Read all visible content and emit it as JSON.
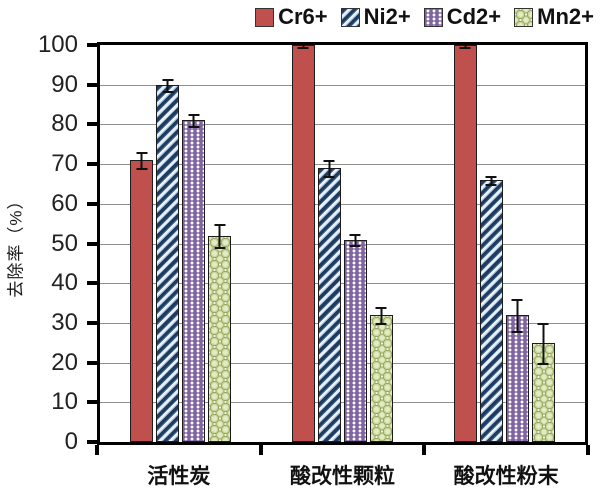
{
  "chart_data": {
    "type": "bar",
    "title": "",
    "xlabel": "",
    "ylabel": "去除率（%）",
    "ylim": [
      0,
      100
    ],
    "ytick_step": 10,
    "yticks": [
      0,
      10,
      20,
      30,
      40,
      50,
      60,
      70,
      80,
      90,
      100
    ],
    "grid": true,
    "legend_position": "top",
    "categories": [
      "活性炭",
      "酸改性颗粒",
      "酸改性粉末"
    ],
    "series": [
      {
        "name": "Cr6+",
        "values": [
          71,
          100,
          100
        ],
        "errors": [
          2,
          0.5,
          0.5
        ],
        "pattern": "solid",
        "color": "#C0504D",
        "pattern_color": "#C0504D"
      },
      {
        "name": "Ni2+",
        "values": [
          90,
          69,
          66
        ],
        "errors": [
          1.5,
          2,
          1
        ],
        "pattern": "stripes",
        "color": "#1F3A5F",
        "pattern_color": "#EAF1F8"
      },
      {
        "name": "Cd2+",
        "values": [
          81,
          51,
          32
        ],
        "errors": [
          1.5,
          1.5,
          4
        ],
        "pattern": "dots",
        "color": "#8064A2",
        "pattern_color": "#FFFFFF"
      },
      {
        "name": "Mn2+",
        "values": [
          52,
          32,
          25
        ],
        "errors": [
          3,
          2,
          5
        ],
        "pattern": "circles",
        "color": "#EFF3DF",
        "pattern_color": "#96A95E"
      }
    ],
    "colors": {
      "axis": "#000000",
      "gridline": "#8F8F8F",
      "error_bar": "#111111",
      "background": "#FFFFFF"
    }
  }
}
